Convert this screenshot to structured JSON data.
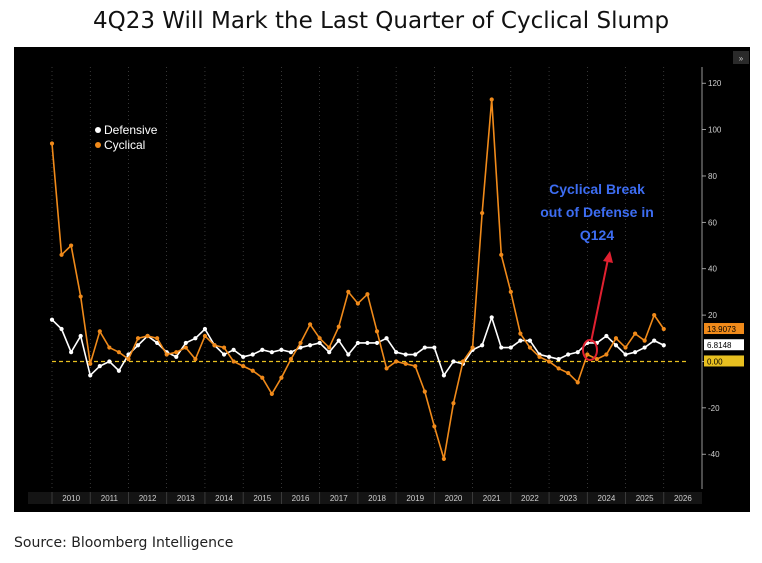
{
  "title": "4Q23 Will Mark the Last Quarter of Cyclical Slump",
  "source": "Source: Bloomberg Intelligence",
  "chart_data": {
    "type": "line",
    "x_start_year": 2010,
    "x_labels": [
      "2010",
      "2011",
      "2012",
      "2013",
      "2014",
      "2015",
      "2016",
      "2017",
      "2018",
      "2019",
      "2020",
      "2021",
      "2022",
      "2023",
      "2024",
      "2025",
      "2026"
    ],
    "xlim": [
      2010,
      2027
    ],
    "ylim": [
      -55,
      127
    ],
    "y_ticks": [
      120,
      100,
      80,
      60,
      40,
      20,
      0,
      -20,
      -40
    ],
    "y_tick_labels": [
      "120",
      "100",
      "80",
      "60",
      "40",
      "20",
      "",
      "-20",
      "-40"
    ],
    "legend_position": "top-left",
    "series": [
      {
        "name": "Defensive",
        "color": "#ffffff",
        "values": [
          18,
          14,
          4,
          11,
          -6,
          -2,
          0,
          -4,
          3,
          7,
          11,
          8,
          4,
          2,
          8,
          10,
          14,
          7,
          3,
          5,
          2,
          3,
          5,
          4,
          5,
          4,
          6,
          7,
          8,
          4,
          9,
          3,
          8,
          8,
          8,
          10,
          4,
          3,
          3,
          6,
          6,
          -6,
          0,
          -1,
          5,
          7,
          19,
          6,
          6,
          9,
          9,
          3,
          2,
          1,
          3,
          4,
          8,
          8,
          11,
          7,
          3,
          4,
          6,
          9,
          7
        ]
      },
      {
        "name": "Cyclical",
        "color": "#f08a1a",
        "values": [
          94,
          46,
          50,
          28,
          -1,
          13,
          6,
          4,
          1,
          10,
          11,
          10,
          3,
          4,
          6,
          1,
          11,
          7,
          6,
          0,
          -2,
          -4,
          -7,
          -14,
          -7,
          1,
          8,
          16,
          10,
          6,
          15,
          30,
          25,
          29,
          13,
          -3,
          0,
          -1,
          -2,
          -13,
          -28,
          -42,
          -18,
          0,
          6,
          64,
          113,
          46,
          30,
          12,
          6,
          2,
          0,
          -3,
          -5,
          -9,
          3,
          1,
          3,
          10,
          6,
          12,
          9,
          20,
          14
        ]
      }
    ],
    "baseline": {
      "value": 0,
      "label": "0.00",
      "color": "#e8c020"
    },
    "last_value_labels": [
      {
        "series": "Cyclical",
        "label": "13.9073"
      },
      {
        "series": "Defensive",
        "label": "6.8148"
      }
    ],
    "annotation": {
      "lines": [
        "Cyclical Break",
        "out of Defense in",
        "Q124"
      ],
      "color": "#3d6df2",
      "arrow_color": "#e02030"
    },
    "corner_glyph": "»"
  }
}
